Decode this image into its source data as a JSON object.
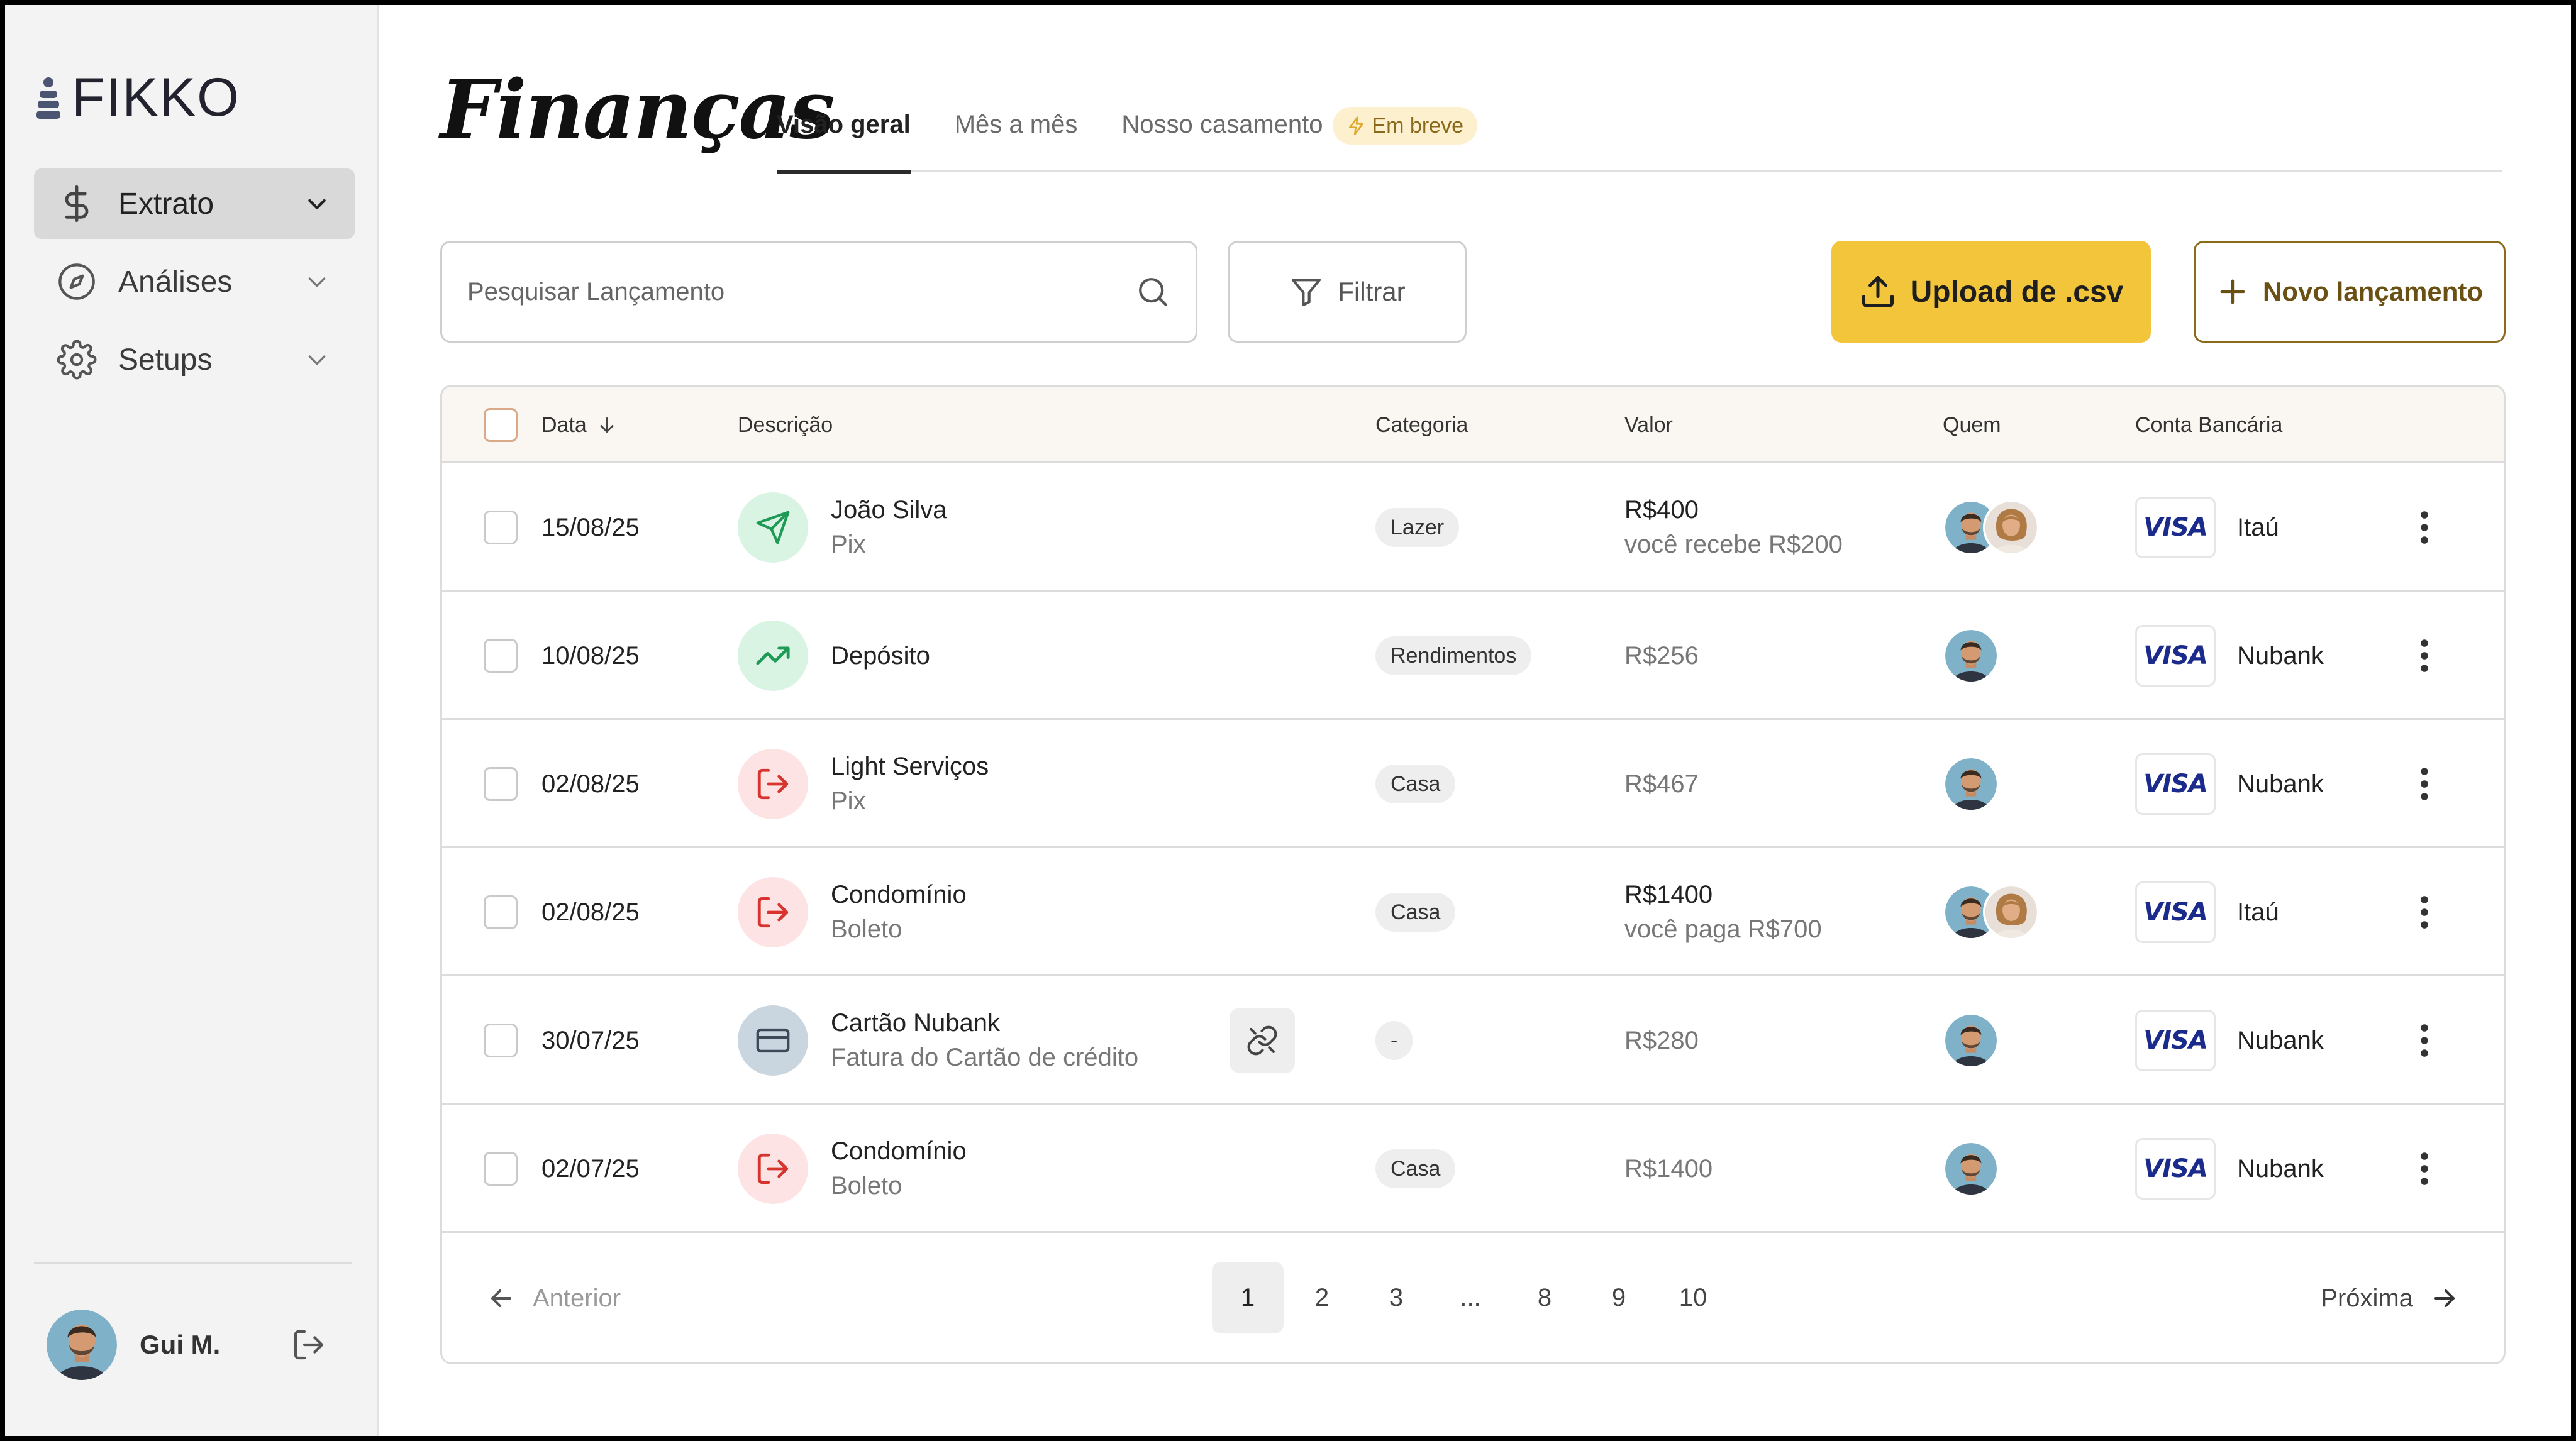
{
  "brand": {
    "name": "FIKKO"
  },
  "sidebar": {
    "items": [
      {
        "label": "Extrato",
        "icon": "dollar-icon",
        "active": true
      },
      {
        "label": "Análises",
        "icon": "compass-icon",
        "active": false
      },
      {
        "label": "Setups",
        "icon": "gear-icon",
        "active": false
      }
    ],
    "user": {
      "name": "Gui M."
    }
  },
  "header": {
    "title": "Finanças",
    "tabs": [
      {
        "label": "Visão geral",
        "active": true
      },
      {
        "label": "Mês a mês",
        "active": false
      },
      {
        "label": "Nosso casamento",
        "active": false,
        "badge": "Em breve"
      }
    ]
  },
  "toolbar": {
    "search_placeholder": "Pesquisar Lançamento",
    "filter_label": "Filtrar",
    "upload_label": "Upload de .csv",
    "new_label": "Novo lançamento"
  },
  "table": {
    "columns": {
      "date": "Data",
      "description": "Descrição",
      "category": "Categoria",
      "value": "Valor",
      "who": "Quem",
      "bank": "Conta Bancária"
    },
    "rows": [
      {
        "date": "15/08/25",
        "title": "João Silva",
        "subtitle": "Pix",
        "icon": "send-icon",
        "category": "Lazer",
        "value": "R$400",
        "value_sub": "você recebe R$200",
        "who": 2,
        "card": "VISA",
        "bank": "Itaú"
      },
      {
        "date": "10/08/25",
        "title": "Depósito",
        "subtitle": "",
        "icon": "trending-up-icon",
        "category": "Rendimentos",
        "value": "R$256",
        "value_sub": "",
        "who": 1,
        "card": "VISA",
        "bank": "Nubank"
      },
      {
        "date": "02/08/25",
        "title": "Light Serviços",
        "subtitle": "Pix",
        "icon": "exit-icon",
        "category": "Casa",
        "value": "R$467",
        "value_sub": "",
        "who": 1,
        "card": "VISA",
        "bank": "Nubank"
      },
      {
        "date": "02/08/25",
        "title": "Condomínio",
        "subtitle": "Boleto",
        "icon": "exit-icon",
        "category": "Casa",
        "value": "R$1400",
        "value_sub": "você paga R$700",
        "who": 2,
        "card": "VISA",
        "bank": "Itaú"
      },
      {
        "date": "30/07/25",
        "title": "Cartão Nubank",
        "subtitle": "Fatura do Cartão de crédito",
        "icon": "credit-card-icon",
        "category": "-",
        "value": "R$280",
        "value_sub": "",
        "who": 1,
        "card": "VISA",
        "bank": "Nubank"
      },
      {
        "date": "02/07/25",
        "title": "Condomínio",
        "subtitle": "Boleto",
        "icon": "exit-icon",
        "category": "Casa",
        "value": "R$1400",
        "value_sub": "",
        "who": 1,
        "card": "VISA",
        "bank": "Nubank"
      }
    ]
  },
  "pagination": {
    "prev": "Anterior",
    "next": "Próxima",
    "pages": [
      "1",
      "2",
      "3",
      "...",
      "8",
      "9",
      "10"
    ],
    "current": "1"
  },
  "colors": {
    "accent": "#f3c53b",
    "accent_border": "#8a6b1a",
    "green_bg": "#d9f4e3",
    "green_fg": "#1f9a56",
    "red_bg": "#fde3e3",
    "red_fg": "#d8342f"
  }
}
